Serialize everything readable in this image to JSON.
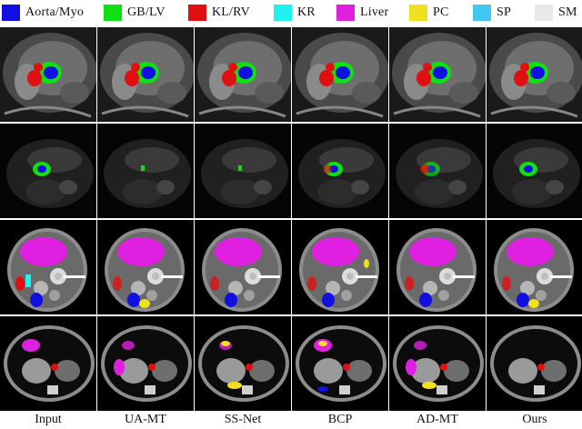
{
  "legend": [
    {
      "label": "Aorta/Myo",
      "color": "#1010e0"
    },
    {
      "label": "GB/LV",
      "color": "#10e010"
    },
    {
      "label": "KL/RV",
      "color": "#e01010"
    },
    {
      "label": "KR",
      "color": "#20f0f0"
    },
    {
      "label": "Liver",
      "color": "#e020e0"
    },
    {
      "label": "PC",
      "color": "#f0e020"
    },
    {
      "label": "SP",
      "color": "#40c8f0"
    },
    {
      "label": "SM",
      "color": "#e8e8e8"
    }
  ],
  "columns": [
    {
      "label": "Input"
    },
    {
      "label": "UA-MT"
    },
    {
      "label": "SS-Net"
    },
    {
      "label": "BCP"
    },
    {
      "label": "AD-MT"
    },
    {
      "label": "Ours"
    }
  ],
  "rows": [
    {
      "kind": "cardiac-mri-1"
    },
    {
      "kind": "cardiac-mri-2"
    },
    {
      "kind": "abdominal-ct-1"
    },
    {
      "kind": "abdominal-ct-2"
    }
  ]
}
